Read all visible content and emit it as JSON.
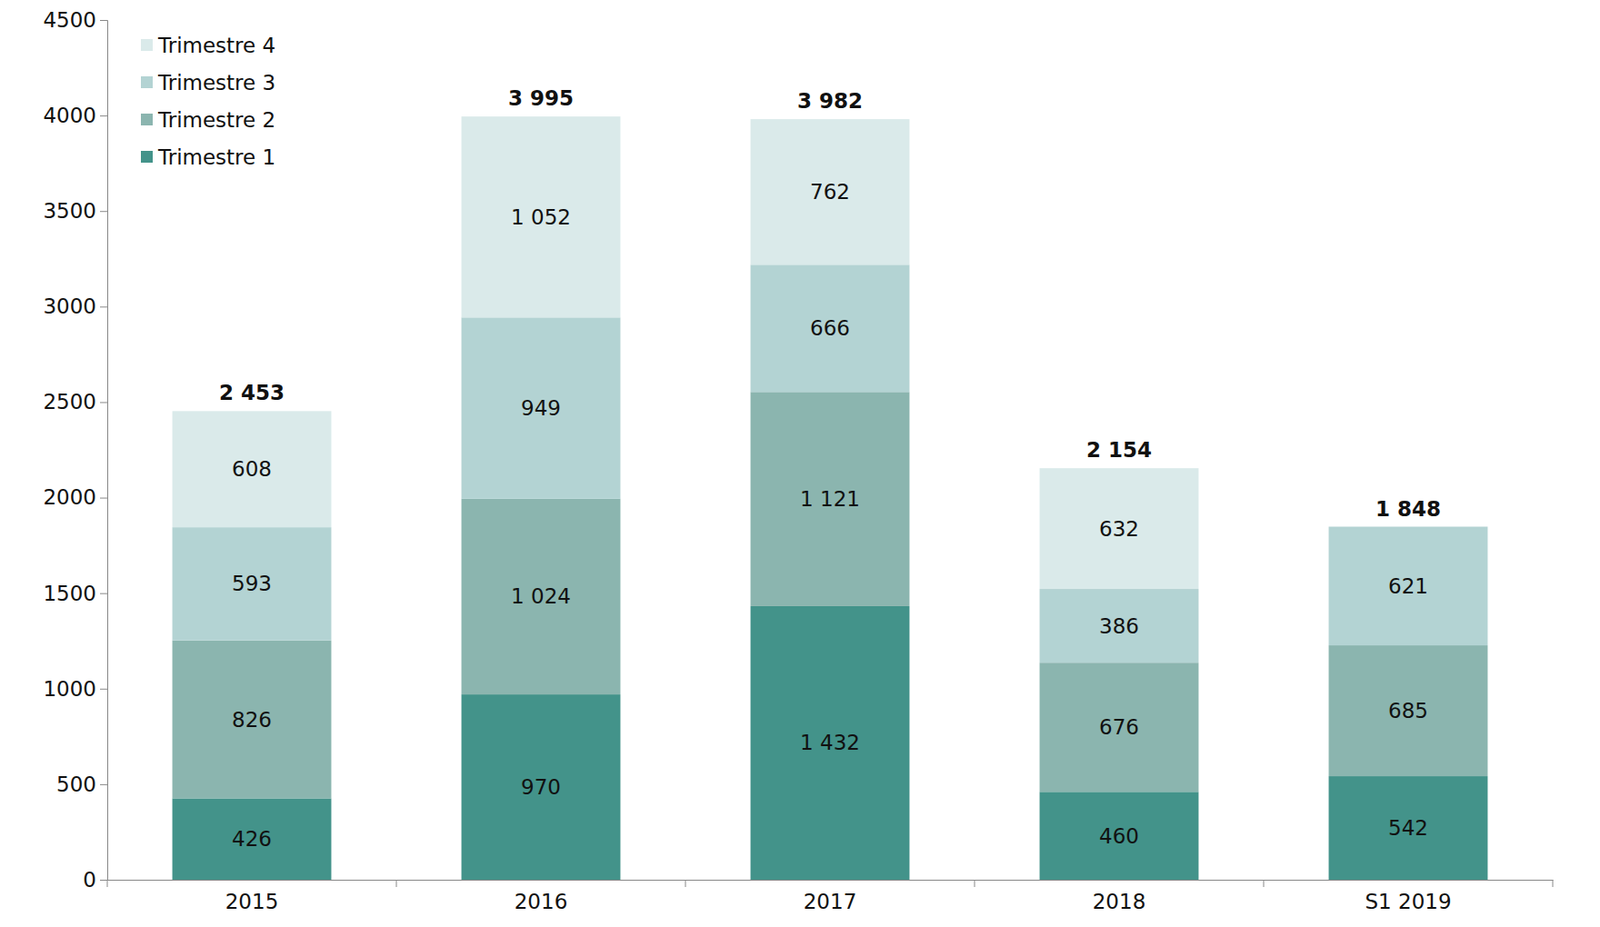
{
  "chart_data": {
    "type": "bar",
    "stacked": true,
    "data_labels": true,
    "grid": false,
    "legend": "top-left",
    "categories": [
      "2015",
      "2016",
      "2017",
      "2018",
      "S1 2019"
    ],
    "series": [
      {
        "name": "Trimestre 1",
        "color": "#43938a",
        "values": [
          426,
          970,
          1432,
          460,
          542
        ],
        "value_labels": [
          "426",
          "970",
          "1 432",
          "460",
          "542"
        ]
      },
      {
        "name": "Trimestre 2",
        "color": "#8bb5af",
        "values": [
          826,
          1024,
          1121,
          676,
          685
        ],
        "value_labels": [
          "826",
          "1 024",
          "1 121",
          "676",
          "685"
        ]
      },
      {
        "name": "Trimestre 3",
        "color": "#b3d3d3",
        "values": [
          593,
          949,
          666,
          386,
          621
        ],
        "value_labels": [
          "593",
          "949",
          "666",
          "386",
          "621"
        ]
      },
      {
        "name": "Trimestre 4",
        "color": "#daeaea",
        "values": [
          608,
          1052,
          762,
          632,
          null
        ],
        "value_labels": [
          "608",
          "1 052",
          "762",
          "632",
          null
        ]
      }
    ],
    "totals": [
      2453,
      3995,
      3982,
      2154,
      1848
    ],
    "total_labels": [
      "2 453",
      "3 995",
      "3 982",
      "2 154",
      "1 848"
    ],
    "ylim": [
      0,
      4500
    ],
    "yticks": [
      0,
      500,
      1000,
      1500,
      2000,
      2500,
      3000,
      3500,
      4000,
      4500
    ]
  }
}
